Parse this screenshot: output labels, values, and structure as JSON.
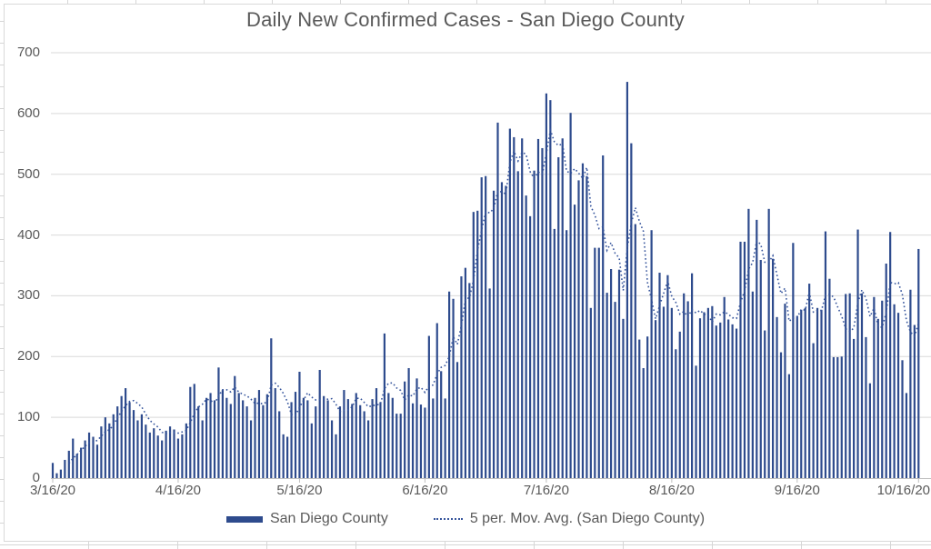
{
  "chart": {
    "title": "Daily New Confirmed Cases - San Diego County",
    "legend": [
      {
        "label": "San Diego County",
        "swatch": "bar-swatch"
      },
      {
        "label": "5 per. Mov. Avg. (San Diego County)",
        "swatch": "dotted-line-swatch"
      }
    ]
  },
  "colors": {
    "bar": "#2e4b8d",
    "moving_average_line": "#35549c",
    "title_text": "#595959",
    "axis_text": "#595959",
    "gridline": "#d9d9d9",
    "axis_line": "#bfbfbf",
    "chart_border": "#d9d9d9",
    "sheet_gridline": "#d6d6d6"
  },
  "chart_data": {
    "type": "bar",
    "title": "Daily New Confirmed Cases - San Diego County",
    "xlabel": "",
    "ylabel": "",
    "ylim": [
      0,
      700
    ],
    "y_ticks": [
      0,
      100,
      200,
      300,
      400,
      500,
      600,
      700
    ],
    "grid": "horizontal",
    "legend_position": "bottom",
    "x_start_date": "3/16/20",
    "x_tick_labels": [
      "3/16/20",
      "4/16/20",
      "5/16/20",
      "6/16/20",
      "7/16/20",
      "8/16/20",
      "9/16/20",
      "10/16/20"
    ],
    "x_tick_day_index": [
      0,
      31,
      61,
      92,
      122,
      153,
      184,
      214
    ],
    "series": [
      {
        "name": "San Diego County",
        "type": "bar",
        "color": "#2e4b8d",
        "values": [
          25,
          8,
          14,
          30,
          45,
          65,
          40,
          50,
          62,
          75,
          68,
          55,
          85,
          100,
          90,
          105,
          118,
          135,
          148,
          125,
          112,
          95,
          105,
          88,
          75,
          82,
          70,
          62,
          78,
          85,
          80,
          65,
          72,
          90,
          150,
          155,
          118,
          95,
          132,
          140,
          128,
          182,
          145,
          132,
          122,
          168,
          140,
          128,
          118,
          95,
          132,
          145,
          120,
          138,
          230,
          148,
          110,
          72,
          68,
          125,
          142,
          175,
          132,
          128,
          90,
          118,
          178,
          135,
          128,
          95,
          72,
          118,
          145,
          130,
          122,
          140,
          120,
          110,
          95,
          130,
          148,
          125,
          238,
          140,
          132,
          106,
          106,
          159,
          181,
          123,
          164,
          121,
          116,
          234,
          131,
          255,
          176,
          131,
          307,
          295,
          191,
          332,
          346,
          321,
          438,
          440,
          495,
          497,
          312,
          473,
          585,
          487,
          481,
          575,
          561,
          505,
          559,
          465,
          431,
          506,
          558,
          543,
          633,
          622,
          410,
          528,
          559,
          408,
          601,
          450,
          490,
          518,
          497,
          280,
          379,
          379,
          531,
          305,
          344,
          290,
          343,
          262,
          652,
          551,
          418,
          228,
          181,
          233,
          408,
          260,
          338,
          282,
          334,
          280,
          212,
          241,
          304,
          291,
          337,
          185,
          263,
          273,
          280,
          283,
          251,
          256,
          298,
          261,
          253,
          246,
          389,
          389,
          443,
          307,
          425,
          359,
          243,
          443,
          361,
          265,
          207,
          287,
          171,
          387,
          267,
          277,
          280,
          320,
          222,
          280,
          277,
          406,
          328,
          199,
          199,
          200,
          303,
          304,
          229,
          409,
          304,
          232,
          156,
          298,
          262,
          292,
          353,
          405,
          286,
          272,
          194,
          140,
          310,
          252,
          377
        ]
      },
      {
        "name": "5 per. Mov. Avg. (San Diego County)",
        "type": "line",
        "style": "dotted",
        "color": "#35549c",
        "derived_from": "5-period moving average of the San Diego County daily values",
        "ma_window": 5
      }
    ]
  }
}
